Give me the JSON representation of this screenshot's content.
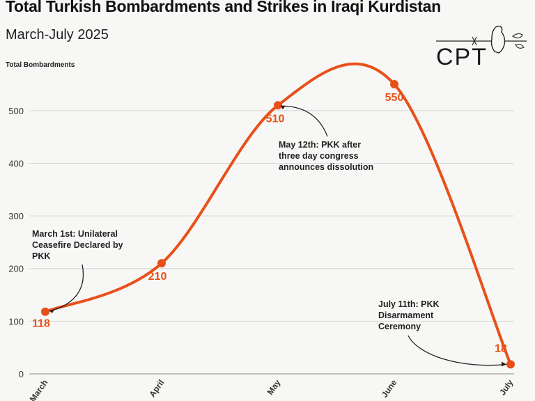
{
  "header": {
    "title": "Total Turkish Bombardments and Strikes in Iraqi Kurdistan",
    "subtitle": "March-July 2025",
    "logo_text": "CPT"
  },
  "chart_data": {
    "type": "line",
    "ylabel": "Total Bombardments",
    "categories": [
      "March",
      "April",
      "May",
      "June",
      "July"
    ],
    "values": [
      118,
      210,
      510,
      550,
      18
    ],
    "data_labels": [
      "118",
      "210",
      "510",
      "550",
      "18"
    ],
    "yticks": [
      0,
      100,
      200,
      300,
      400,
      500
    ],
    "ytick_labels": [
      "0",
      "100",
      "200",
      "300",
      "400",
      "500"
    ],
    "ylim": [
      0,
      560
    ],
    "grid": true,
    "line_color": "#e8501a",
    "annotations": [
      {
        "lines": [
          "March 1st: Unilateral",
          "Ceasefire Declared by",
          "PKK"
        ],
        "point_index": 0
      },
      {
        "lines": [
          "May 12th: PKK after",
          "three day congress",
          "announces dissolution"
        ],
        "point_index": 2
      },
      {
        "lines": [
          "July 11th: PKK",
          "Disarmament",
          "Ceremony"
        ],
        "point_index": 4
      }
    ]
  }
}
